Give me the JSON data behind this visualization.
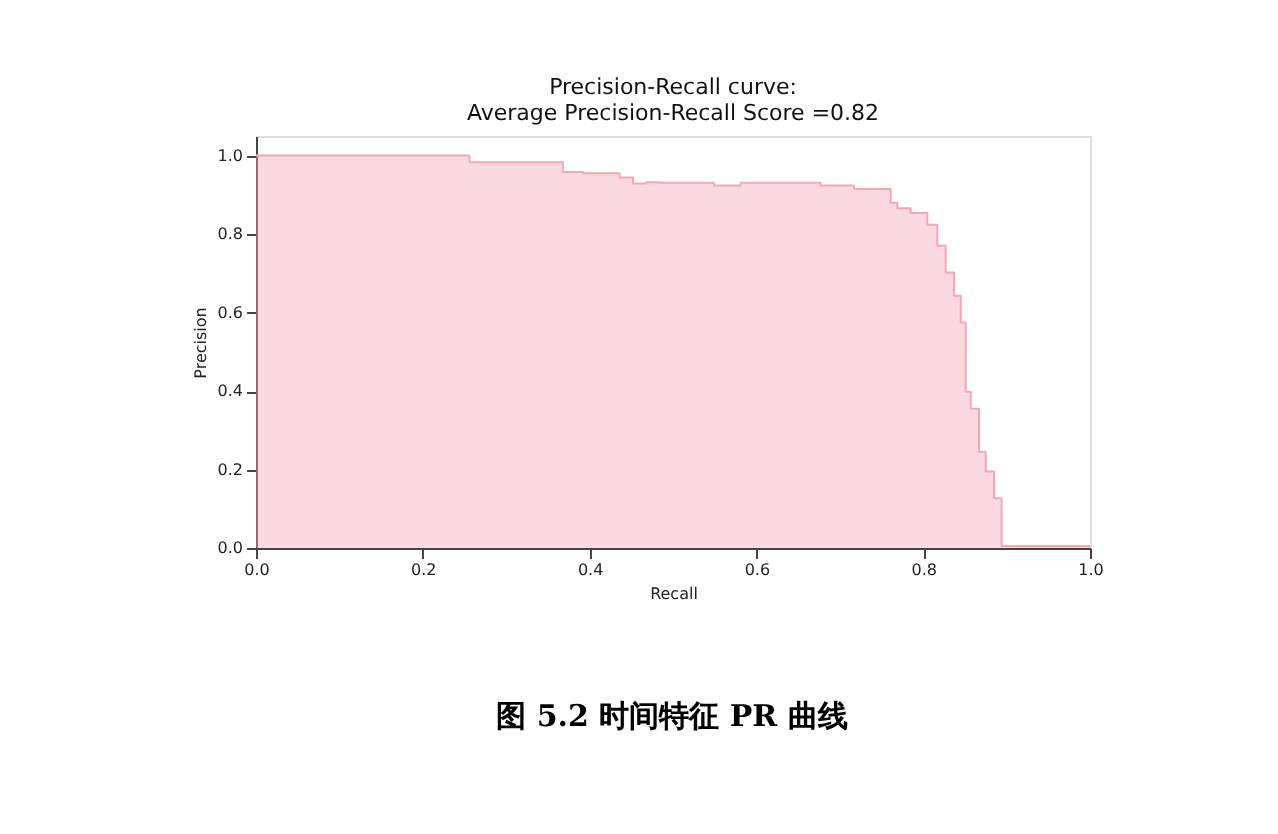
{
  "chart_data": {
    "type": "step",
    "title": [
      "Precision-Recall curve:",
      "Average Precision-Recall Score =0.82"
    ],
    "xlabel": "Recall",
    "ylabel": "Precision",
    "x": [
      0,
      0.256,
      0.368,
      0.392,
      0.436,
      0.452,
      0.468,
      0.484,
      0.549,
      0.581,
      0.677,
      0.717,
      0.761,
      0.769,
      0.785,
      0.805,
      0.817,
      0.827,
      0.837,
      0.845,
      0.851,
      0.857,
      0.867,
      0.875,
      0.885,
      0.894,
      1.0
    ],
    "series": [
      {
        "color": "#f4a7b5",
        "values": [
          1.0,
          0.983,
          0.958,
          0.955,
          0.944,
          0.929,
          0.932,
          0.931,
          0.924,
          0.931,
          0.924,
          0.915,
          0.88,
          0.866,
          0.854,
          0.824,
          0.77,
          0.702,
          0.643,
          0.575,
          0.398,
          0.355,
          0.245,
          0.195,
          0.127,
          0.005,
          0.005
        ]
      }
    ],
    "xlim": [
      0,
      1
    ],
    "ylim": [
      0,
      1.05
    ],
    "xticks": [
      {
        "value": 0,
        "label": "0.0"
      },
      0.2,
      0.4,
      0.6,
      0.8,
      {
        "value": 1,
        "label": "1.0"
      }
    ],
    "yticks": [
      {
        "value": 0,
        "label": "0.0"
      },
      0.2,
      0.4,
      0.6,
      0.8,
      {
        "value": 1,
        "label": "1.0"
      }
    ],
    "grid": false,
    "annotations": [
      "图 5.2 时间特征 PR 曲线"
    ]
  }
}
